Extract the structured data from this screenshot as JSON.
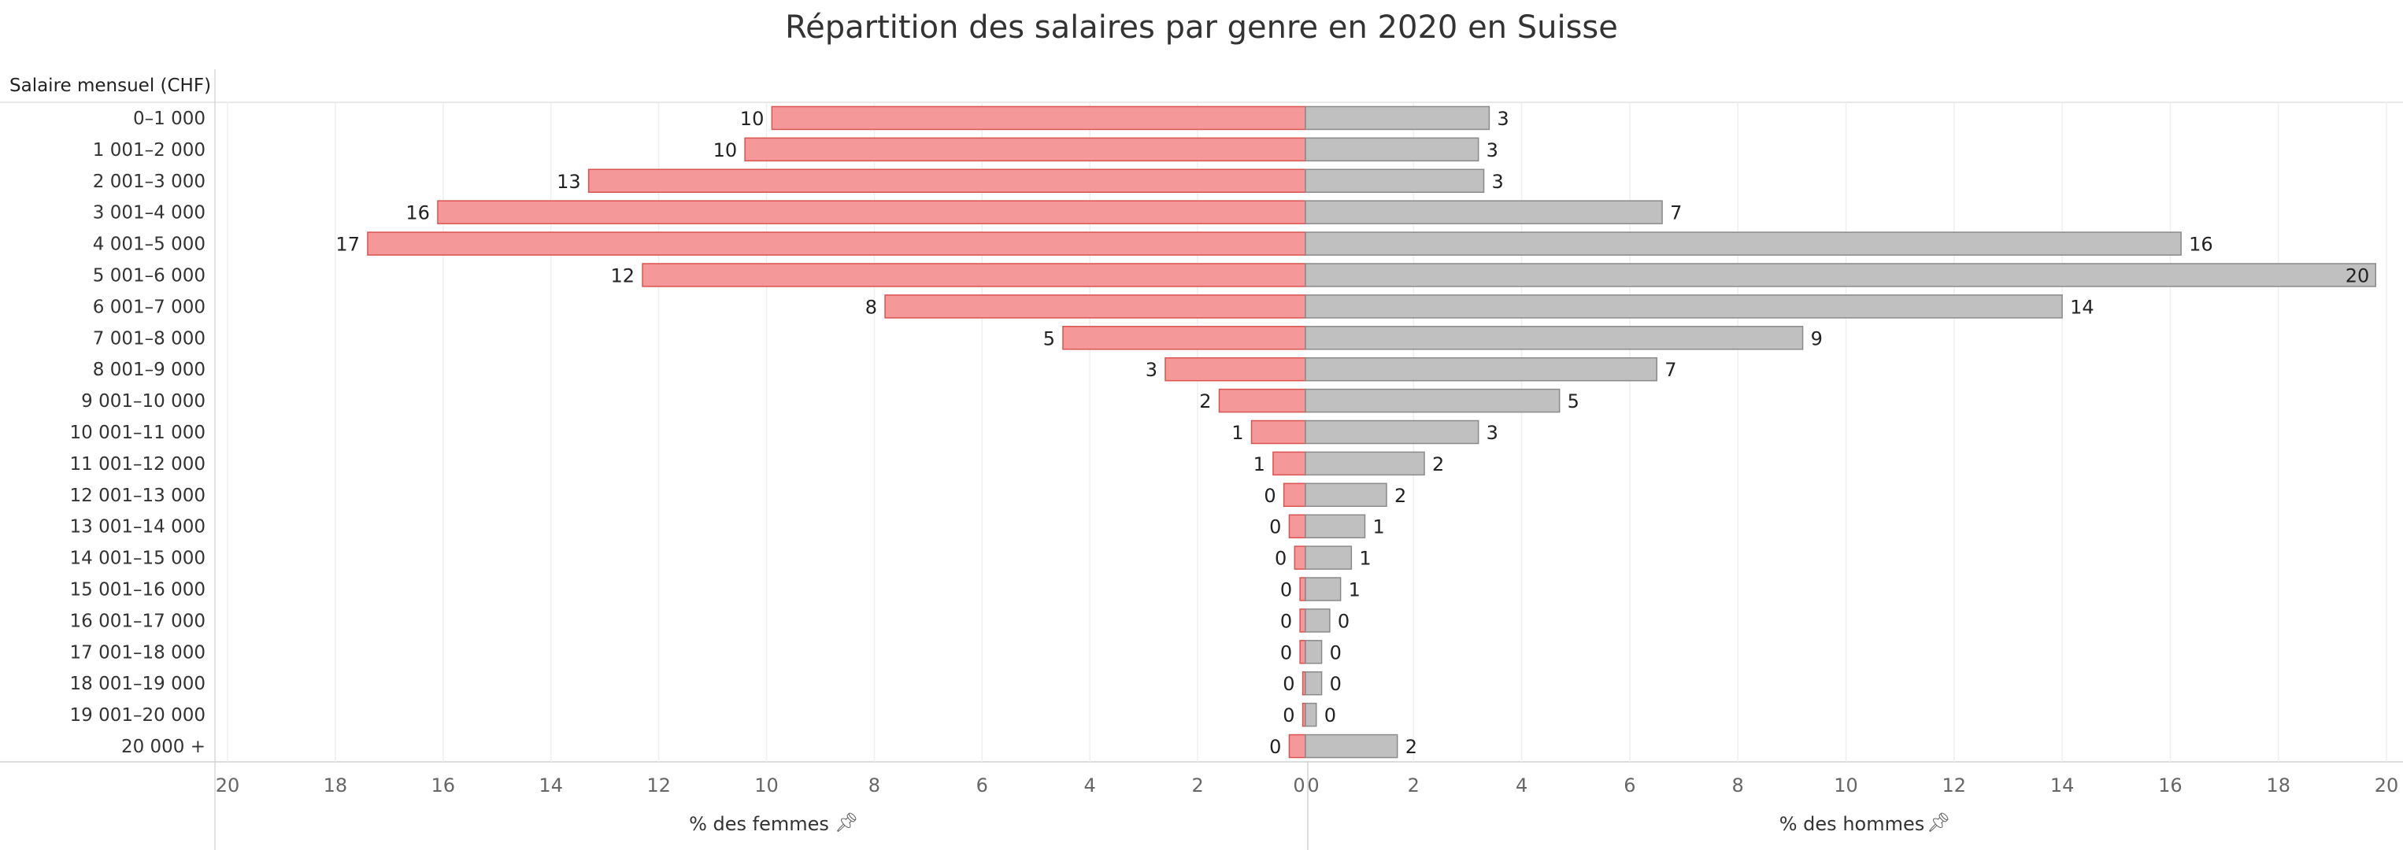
{
  "chart_data": {
    "type": "bar",
    "orientation": "horizontal",
    "title": "Répartition des salaires par genre en 2020 en Suisse",
    "row_header": "Salaire mensuel (CHF)",
    "categories": [
      "0–1 000",
      "1 001–2 000",
      "2 001–3 000",
      "3 001–4 000",
      "4 001–5 000",
      "5 001–6 000",
      "6 001–7 000",
      "7 001–8 000",
      "8 001–9 000",
      "9 001–10 000",
      "10 001–11 000",
      "11 001–12 000",
      "12 001–13 000",
      "13 001–14 000",
      "14 001–15 000",
      "15 001–16 000",
      "16 001–17 000",
      "17 001–18 000",
      "18 001–19 000",
      "19 001–20 000",
      "20 000 +"
    ],
    "series": [
      {
        "name": "% des femmes",
        "color": "#f4989a",
        "stroke": "#d9534f",
        "values": [
          9.9,
          10.4,
          13.3,
          16.1,
          17.4,
          12.3,
          7.8,
          4.5,
          2.6,
          1.6,
          1.0,
          0.6,
          0.4,
          0.3,
          0.2,
          0.1,
          0.1,
          0.1,
          0.05,
          0.05,
          0.3
        ],
        "labels": [
          "10",
          "10",
          "13",
          "16",
          "17",
          "12",
          "8",
          "5",
          "3",
          "2",
          "1",
          "1",
          "0",
          "0",
          "0",
          "0",
          "0",
          "0",
          "0",
          "0",
          "0"
        ]
      },
      {
        "name": "% des hommes",
        "color": "#c0c0c0",
        "stroke": "#8a8a8a",
        "values": [
          3.4,
          3.2,
          3.3,
          6.6,
          16.2,
          19.8,
          14.0,
          9.2,
          6.5,
          4.7,
          3.2,
          2.2,
          1.5,
          1.1,
          0.85,
          0.65,
          0.45,
          0.3,
          0.3,
          0.2,
          1.7
        ],
        "labels": [
          "3",
          "3",
          "3",
          "7",
          "16",
          "20",
          "14",
          "9",
          "7",
          "5",
          "3",
          "2",
          "2",
          "1",
          "1",
          "1",
          "0",
          "0",
          "0",
          "0",
          "2"
        ]
      }
    ],
    "xlim": [
      0,
      20
    ],
    "xticks_left": [
      "20",
      "18",
      "16",
      "14",
      "12",
      "10",
      "8",
      "6",
      "4",
      "2",
      "0"
    ],
    "xticks_right": [
      "0",
      "2",
      "4",
      "6",
      "8",
      "10",
      "12",
      "14",
      "16",
      "18",
      "20"
    ],
    "xlabel_left": "% des femmes",
    "xlabel_right": "% des hommes",
    "grid": true
  }
}
